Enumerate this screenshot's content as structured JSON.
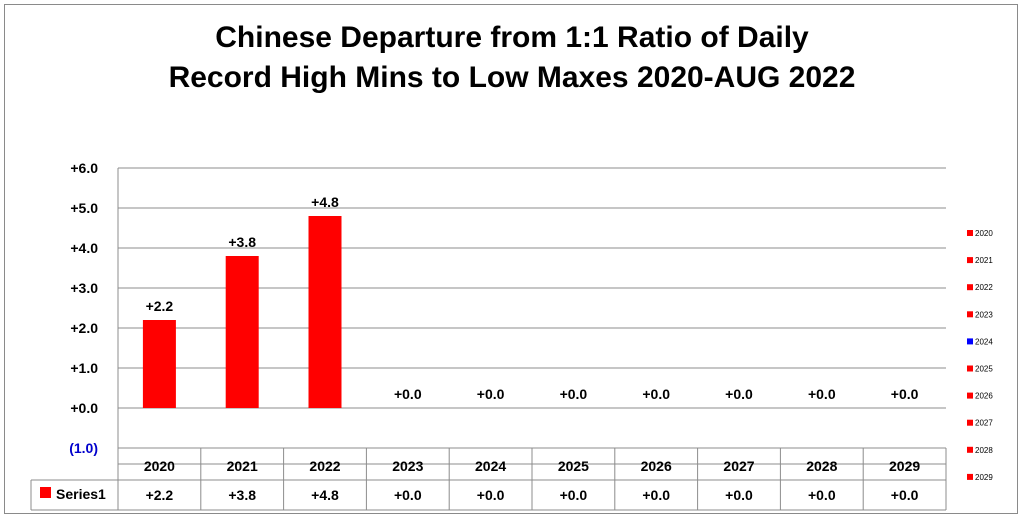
{
  "chart_data": {
    "type": "bar",
    "title_line1": "Chinese Departure from 1:1 Ratio of Daily",
    "title_line2": "Record High Mins to Low Maxes 2020-AUG 2022",
    "categories": [
      "2020",
      "2021",
      "2022",
      "2023",
      "2024",
      "2025",
      "2026",
      "2027",
      "2028",
      "2029"
    ],
    "series": [
      {
        "name": "Series1",
        "values": [
          2.2,
          3.8,
          4.8,
          0.0,
          0.0,
          0.0,
          0.0,
          0.0,
          0.0,
          0.0
        ],
        "labels": [
          "+2.2",
          "+3.8",
          "+4.8",
          "+0.0",
          "+0.0",
          "+0.0",
          "+0.0",
          "+0.0",
          "+0.0",
          "+0.0"
        ],
        "color": "#ff0000"
      }
    ],
    "ylim": [
      -1,
      6
    ],
    "yticks": [
      6,
      5,
      4,
      3,
      2,
      1,
      0,
      -1
    ],
    "ytick_labels": [
      "+6.0",
      "+5.0",
      "+4.0",
      "+3.0",
      "+2.0",
      "+1.0",
      "+0.0",
      "(1.0)"
    ],
    "negative_tick_color": "#0000cc",
    "grid": true,
    "data_table": true,
    "legend": {
      "position": "right",
      "entries": [
        {
          "label": "2020",
          "color": "#ff0000"
        },
        {
          "label": "2021",
          "color": "#ff0000"
        },
        {
          "label": "2022",
          "color": "#ff0000"
        },
        {
          "label": "2023",
          "color": "#ff0000"
        },
        {
          "label": "2024",
          "color": "#0000ff"
        },
        {
          "label": "2025",
          "color": "#ff0000"
        },
        {
          "label": "2026",
          "color": "#ff0000"
        },
        {
          "label": "2027",
          "color": "#ff0000"
        },
        {
          "label": "2028",
          "color": "#ff0000"
        },
        {
          "label": "2029",
          "color": "#ff0000"
        }
      ]
    }
  }
}
